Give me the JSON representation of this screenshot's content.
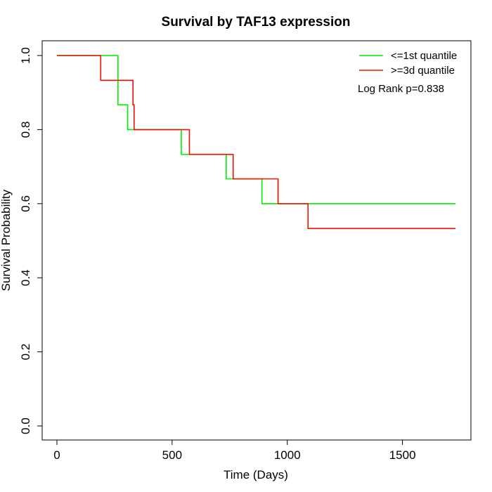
{
  "chart_data": {
    "type": "line",
    "title": "Survival by TAF13 expression",
    "xlabel": "Time (Days)",
    "ylabel": "Survival Probability",
    "xlim": [
      0,
      1730
    ],
    "ylim": [
      0,
      1.0
    ],
    "x_ticks": [
      0,
      500,
      1000,
      1500
    ],
    "y_ticks": [
      0.0,
      0.2,
      0.4,
      0.6,
      0.8,
      1.0
    ],
    "x_tick_labels": [
      "0",
      "500",
      "1000",
      "1500"
    ],
    "y_tick_labels": [
      "0.0",
      "0.2",
      "0.4",
      "0.6",
      "0.8",
      "1.0"
    ],
    "grid": false,
    "legend_position": "top-right",
    "annotation": "Log Rank p=0.838",
    "series": [
      {
        "name": "<=1st quantile",
        "color": "#00ee00",
        "step_x": [
          0,
          258,
          265,
          307,
          540,
          735,
          890,
          1730
        ],
        "step_y": [
          1.0,
          1.0,
          0.867,
          0.8,
          0.733,
          0.667,
          0.6,
          0.6
        ]
      },
      {
        "name": ">=3d quantile",
        "color": "#ee1100",
        "step_x": [
          0,
          190,
          330,
          335,
          575,
          765,
          960,
          1090,
          1730
        ],
        "step_y": [
          1.0,
          0.933,
          0.867,
          0.8,
          0.733,
          0.667,
          0.6,
          0.533,
          0.533
        ]
      }
    ]
  }
}
